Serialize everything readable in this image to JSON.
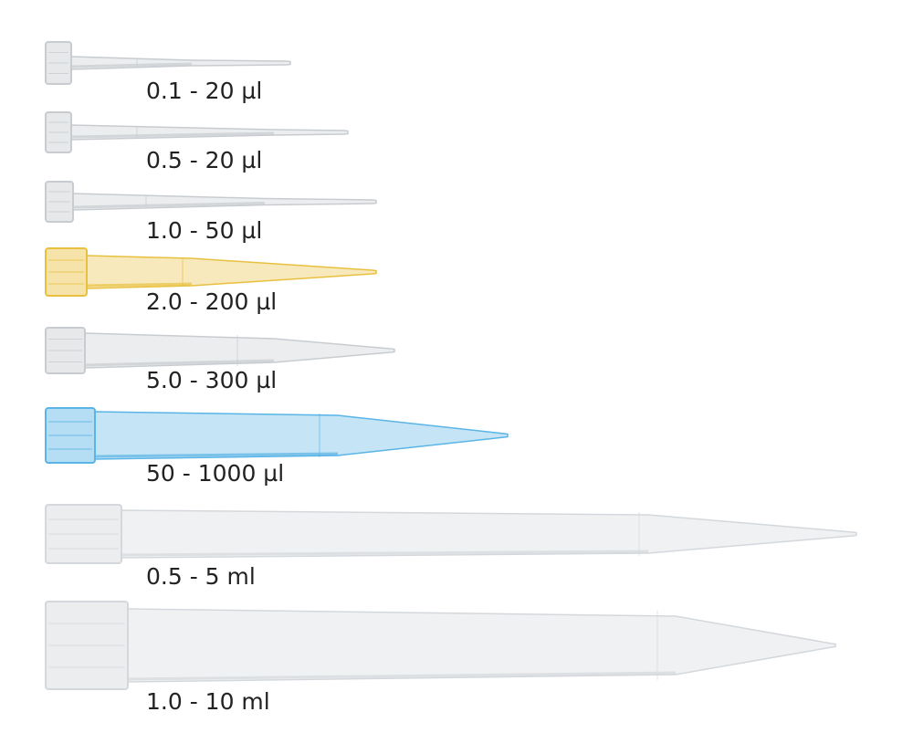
{
  "tips": [
    {
      "label": "0.1 - 20 µl",
      "color": "#c8ccd0"
    },
    {
      "label": "0.5 - 20 µl",
      "color": "#c8ccd0"
    },
    {
      "label": "1.0 - 50 µl",
      "color": "#c8ccd0"
    },
    {
      "label": "2.0 - 200 µl",
      "color": "#e8c040"
    },
    {
      "label": "5.0 - 300 µl",
      "color": "#c8ccd0"
    },
    {
      "label": "50 - 1000 µl",
      "color": "#5ab4e6"
    },
    {
      "label": "0.5 - 5 ml",
      "color": "#d4d8dc"
    },
    {
      "label": "1.0 - 10 ml",
      "color": "#d4d8dc"
    }
  ]
}
